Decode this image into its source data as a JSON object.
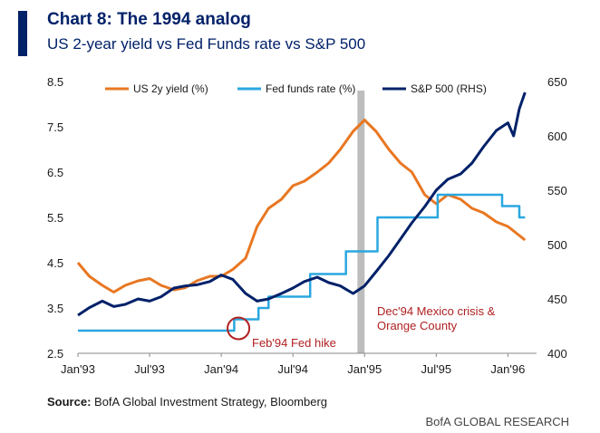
{
  "header": {
    "title": "Chart 8: The 1994 analog",
    "subtitle": "US 2-year yield vs Fed Funds rate vs S&P 500"
  },
  "footer": {
    "source_label": "Source:",
    "source_text": " BofA Global Investment Strategy, Bloomberg",
    "brand": "BofA GLOBAL RESEARCH"
  },
  "colors": {
    "us2y": "#e87722",
    "fed": "#2aa7e0",
    "spx": "#012169",
    "shade": "#bdbdbd",
    "annotation": "#b02020"
  },
  "chart_data": {
    "type": "line",
    "x_ticks": [
      "Jan'93",
      "Jul'93",
      "Jan'94",
      "Jul'94",
      "Jan'95",
      "Jul'95",
      "Jan'96"
    ],
    "xlim": [
      1993.0,
      1996.2
    ],
    "y_left": {
      "lim": [
        2.5,
        8.5
      ],
      "ticks": [
        2.5,
        3.5,
        4.5,
        5.5,
        6.5,
        7.5,
        8.5
      ],
      "tick_labels": [
        "2.5",
        "3.5",
        "4.5",
        "5.5",
        "6.5",
        "7.5",
        "8.5"
      ]
    },
    "y_right": {
      "lim": [
        400,
        650
      ],
      "ticks": [
        400,
        450,
        500,
        550,
        600,
        650
      ],
      "tick_labels": [
        "400",
        "450",
        "500",
        "550",
        "600",
        "650"
      ]
    },
    "grid": false,
    "legend_position": "top",
    "shaded_period": {
      "start": 1994.95,
      "end": 1995.0
    },
    "series": [
      {
        "name": "US 2y yield (%)",
        "axis": "left",
        "color": "#e87722",
        "x": [
          1993.0,
          1993.08,
          1993.17,
          1993.25,
          1993.33,
          1993.42,
          1993.5,
          1993.58,
          1993.67,
          1993.75,
          1993.83,
          1993.92,
          1994.0,
          1994.08,
          1994.17,
          1994.25,
          1994.33,
          1994.42,
          1994.5,
          1994.58,
          1994.67,
          1994.75,
          1994.83,
          1994.92,
          1995.0,
          1995.08,
          1995.17,
          1995.25,
          1995.33,
          1995.42,
          1995.5,
          1995.58,
          1995.67,
          1995.75,
          1995.83,
          1995.92,
          1996.0,
          1996.08,
          1996.12
        ],
        "values": [
          4.5,
          4.2,
          4.0,
          3.85,
          4.0,
          4.1,
          4.15,
          4.0,
          3.9,
          3.95,
          4.1,
          4.2,
          4.2,
          4.35,
          4.6,
          5.3,
          5.7,
          5.9,
          6.2,
          6.3,
          6.5,
          6.7,
          7.0,
          7.4,
          7.65,
          7.4,
          7.0,
          6.7,
          6.5,
          6.0,
          5.8,
          6.0,
          5.9,
          5.7,
          5.6,
          5.4,
          5.3,
          5.1,
          5.0
        ]
      },
      {
        "name": "Fed funds rate (%)",
        "axis": "left",
        "color": "#2aa7e0",
        "step": true,
        "x": [
          1993.0,
          1994.09,
          1994.26,
          1994.33,
          1994.62,
          1994.87,
          1995.09,
          1995.51,
          1995.96,
          1996.08,
          1996.12
        ],
        "values": [
          3.0,
          3.25,
          3.5,
          3.75,
          4.25,
          4.75,
          5.5,
          6.0,
          5.75,
          5.5,
          5.5
        ]
      },
      {
        "name": "S&P 500 (RHS)",
        "axis": "right",
        "color": "#012169",
        "x": [
          1993.0,
          1993.08,
          1993.17,
          1993.25,
          1993.33,
          1993.42,
          1993.5,
          1993.58,
          1993.67,
          1993.75,
          1993.83,
          1993.92,
          1994.0,
          1994.08,
          1994.17,
          1994.25,
          1994.33,
          1994.42,
          1994.5,
          1994.58,
          1994.67,
          1994.75,
          1994.83,
          1994.92,
          1995.0,
          1995.08,
          1995.17,
          1995.25,
          1995.33,
          1995.42,
          1995.5,
          1995.58,
          1995.67,
          1995.75,
          1995.83,
          1995.92,
          1996.0,
          1996.04,
          1996.08,
          1996.12
        ],
        "values": [
          435,
          442,
          448,
          443,
          445,
          450,
          448,
          452,
          460,
          462,
          463,
          466,
          472,
          468,
          455,
          448,
          450,
          455,
          460,
          466,
          470,
          465,
          462,
          455,
          462,
          475,
          490,
          505,
          520,
          535,
          550,
          560,
          565,
          575,
          590,
          605,
          612,
          600,
          625,
          640
        ]
      }
    ],
    "annotations": [
      {
        "text": "Feb'94 Fed hike",
        "x": 1994.1,
        "y": 3.15
      },
      {
        "text": "Dec'94 Mexico crisis &",
        "x": 1994.95,
        "y": 3.4
      },
      {
        "text": "Orange County",
        "x": 1994.95,
        "y": 3.4
      }
    ]
  }
}
